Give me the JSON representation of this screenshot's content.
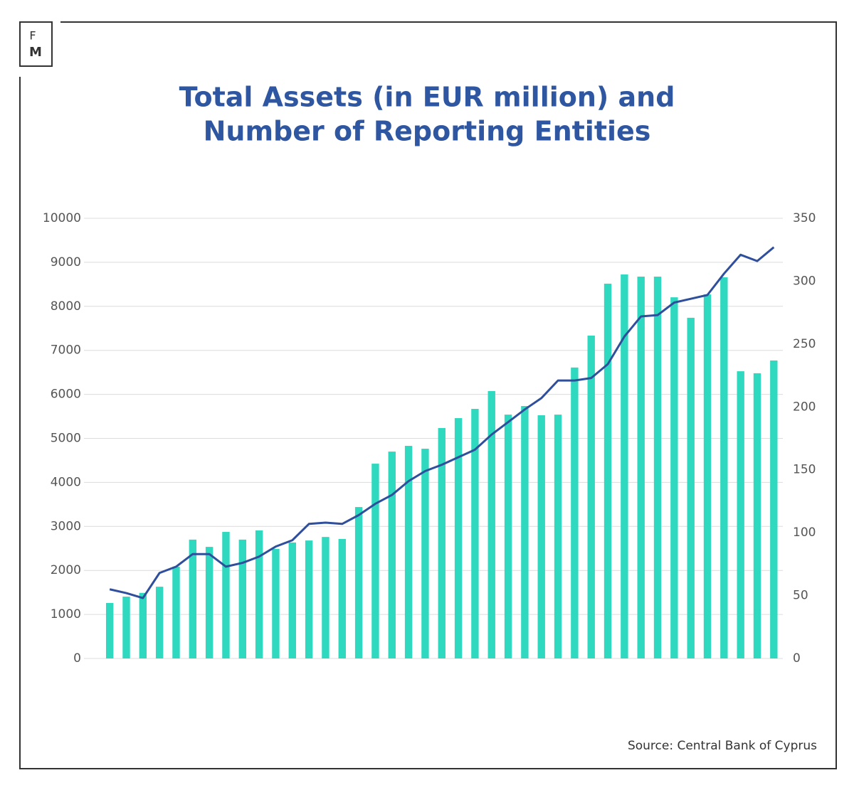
{
  "logo": {
    "top": "F",
    "bottom": "M"
  },
  "chart_data": {
    "type": "bar-line",
    "title": [
      "Total Assets (in EUR million) and",
      "Number of Reporting Entities"
    ],
    "source": "Source: Central Bank of Cyprus",
    "ylim": [
      0,
      10000
    ],
    "yticks": [
      0,
      1000,
      2000,
      3000,
      4000,
      5000,
      6000,
      7000,
      8000,
      9000,
      10000
    ],
    "y2lim": [
      0,
      350
    ],
    "y2ticks": [
      0,
      50,
      100,
      150,
      200,
      250,
      300,
      350
    ],
    "grid": true,
    "series": [
      {
        "type": "bar",
        "color": "#2fd9bf",
        "values": [
          1260,
          1405,
          1490,
          1630,
          2085,
          2700,
          2535,
          2875,
          2700,
          2910,
          2490,
          2635,
          2680,
          2760,
          2715,
          3440,
          4425,
          4700,
          4830,
          4765,
          5235,
          5460,
          5670,
          6075,
          5540,
          5735,
          5525,
          5540,
          6610,
          7335,
          8515,
          8725,
          8675,
          8675,
          8205,
          7740,
          8270,
          8660,
          6525,
          6480,
          6770
        ]
      },
      {
        "type": "line",
        "axis": "y2",
        "color": "#2f4e9c",
        "values": [
          55,
          52,
          48,
          68,
          73,
          83,
          83,
          73,
          76,
          81,
          89,
          94,
          107,
          108,
          107,
          114,
          123,
          130,
          141,
          149,
          154,
          160,
          166,
          178,
          188,
          198,
          207,
          221,
          221,
          223,
          234,
          256,
          272,
          273,
          283,
          286,
          289,
          306,
          321,
          316,
          327
        ]
      }
    ]
  }
}
